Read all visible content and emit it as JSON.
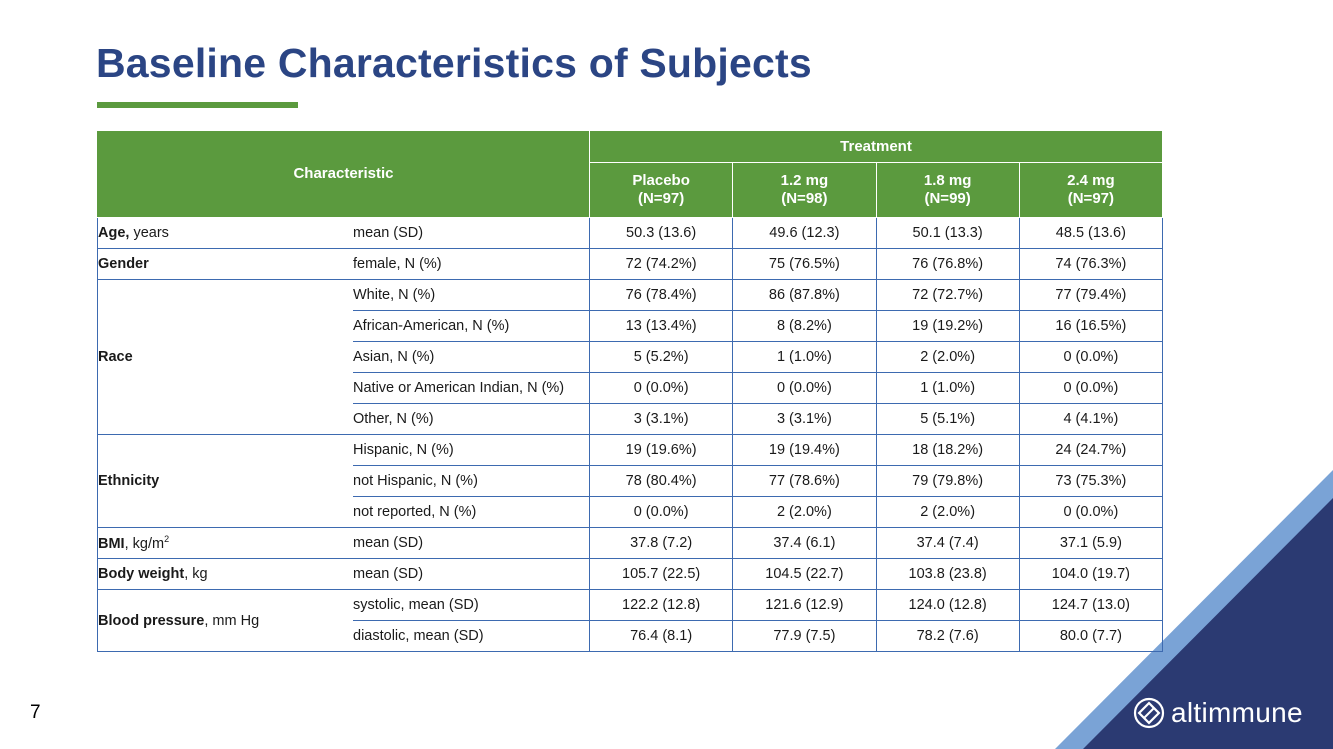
{
  "title": "Baseline Characteristics of Subjects",
  "page_number": "7",
  "logo_text": "altimmune",
  "colors": {
    "title": "#2b4584",
    "accent_green": "#5b9a3e",
    "corner_dark": "#2b3a72"
  },
  "table": {
    "characteristic_header": "Characteristic",
    "treatment_header": "Treatment",
    "columns": [
      {
        "name": "Placebo",
        "n": "(N=97)"
      },
      {
        "name": "1.2 mg",
        "n": "(N=98)"
      },
      {
        "name": "1.8 mg",
        "n": "(N=99)"
      },
      {
        "name": "2.4 mg",
        "n": "(N=97)"
      }
    ],
    "groups": [
      {
        "label_bold": "Age,",
        "label_rest": " years",
        "rows": [
          {
            "measure": "mean (SD)",
            "values": [
              "50.3 (13.6)",
              "49.6 (12.3)",
              "50.1 (13.3)",
              "48.5 (13.6)"
            ]
          }
        ]
      },
      {
        "label_bold": "Gender",
        "label_rest": "",
        "rows": [
          {
            "measure": "female, N (%)",
            "values": [
              "72 (74.2%)",
              "75 (76.5%)",
              "76 (76.8%)",
              "74 (76.3%)"
            ]
          }
        ]
      },
      {
        "label_bold": "Race",
        "label_rest": "",
        "rows": [
          {
            "measure": "White, N (%)",
            "values": [
              "76 (78.4%)",
              "86 (87.8%)",
              "72 (72.7%)",
              "77 (79.4%)"
            ]
          },
          {
            "measure": "African-American, N (%)",
            "values": [
              "13 (13.4%)",
              "8 (8.2%)",
              "19 (19.2%)",
              "16 (16.5%)"
            ]
          },
          {
            "measure": "Asian, N (%)",
            "values": [
              "5 (5.2%)",
              "1 (1.0%)",
              "2 (2.0%)",
              "0 (0.0%)"
            ]
          },
          {
            "measure": "Native or American Indian, N (%)",
            "values": [
              "0 (0.0%)",
              "0 (0.0%)",
              "1 (1.0%)",
              "0 (0.0%)"
            ]
          },
          {
            "measure": "Other, N (%)",
            "values": [
              "3 (3.1%)",
              "3 (3.1%)",
              "5 (5.1%)",
              "4 (4.1%)"
            ]
          }
        ]
      },
      {
        "label_bold": "Ethnicity",
        "label_rest": "",
        "rows": [
          {
            "measure": "Hispanic, N (%)",
            "values": [
              "19 (19.6%)",
              "19 (19.4%)",
              "18 (18.2%)",
              "24 (24.7%)"
            ]
          },
          {
            "measure": "not Hispanic, N (%)",
            "values": [
              "78 (80.4%)",
              "77 (78.6%)",
              "79 (79.8%)",
              "73 (75.3%)"
            ]
          },
          {
            "measure": "not reported, N (%)",
            "values": [
              "0 (0.0%)",
              "2 (2.0%)",
              "2 (2.0%)",
              "0 (0.0%)"
            ]
          }
        ]
      },
      {
        "label_bold": "BMI",
        "label_rest": ", kg/m",
        "label_sup": "2",
        "rows": [
          {
            "measure": "mean (SD)",
            "values": [
              "37.8 (7.2)",
              "37.4 (6.1)",
              "37.4 (7.4)",
              "37.1 (5.9)"
            ]
          }
        ]
      },
      {
        "label_bold": "Body weight",
        "label_rest": ", kg",
        "rows": [
          {
            "measure": "mean (SD)",
            "values": [
              "105.7 (22.5)",
              "104.5 (22.7)",
              "103.8 (23.8)",
              "104.0 (19.7)"
            ]
          }
        ]
      },
      {
        "label_bold": "Blood pressure",
        "label_rest": ", mm Hg",
        "rows": [
          {
            "measure": "systolic, mean (SD)",
            "values": [
              "122.2 (12.8)",
              "121.6 (12.9)",
              "124.0 (12.8)",
              "124.7 (13.0)"
            ]
          },
          {
            "measure": "diastolic, mean (SD)",
            "values": [
              "76.4 (8.1)",
              "77.9 (7.5)",
              "78.2 (7.6)",
              "80.0 (7.7)"
            ]
          }
        ]
      }
    ]
  }
}
